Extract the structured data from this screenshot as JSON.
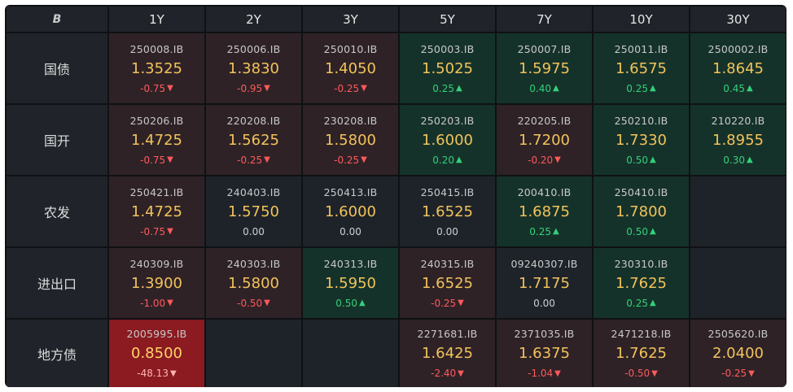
{
  "header": {
    "logo": "B",
    "tenors": [
      "1Y",
      "2Y",
      "3Y",
      "5Y",
      "7Y",
      "10Y",
      "30Y"
    ]
  },
  "colors": {
    "up": "#33d17a",
    "down": "#ff5a5a",
    "price": "#f2c35a",
    "up_bg": "#15322a",
    "down_bg": "#2e2227",
    "strong_down_bg": "#8b1a21",
    "neutral_bg": "#1e232a"
  },
  "icons": {
    "up": "triangle-up-icon",
    "down": "triangle-down-icon"
  },
  "rows": [
    {
      "label": "国债",
      "cells": [
        {
          "code": "250008.IB",
          "price": "1.3525",
          "change": "-0.75",
          "dir": "down",
          "bg": "down"
        },
        {
          "code": "250006.IB",
          "price": "1.3830",
          "change": "-0.95",
          "dir": "down",
          "bg": "down"
        },
        {
          "code": "250010.IB",
          "price": "1.4050",
          "change": "-0.25",
          "dir": "down",
          "bg": "down"
        },
        {
          "code": "250003.IB",
          "price": "1.5025",
          "change": "0.25",
          "dir": "up",
          "bg": "up"
        },
        {
          "code": "250007.IB",
          "price": "1.5975",
          "change": "0.40",
          "dir": "up",
          "bg": "up"
        },
        {
          "code": "250011.IB",
          "price": "1.6575",
          "change": "0.25",
          "dir": "up",
          "bg": "up"
        },
        {
          "code": "2500002.IB",
          "price": "1.8645",
          "change": "0.45",
          "dir": "up",
          "bg": "up"
        }
      ]
    },
    {
      "label": "国开",
      "cells": [
        {
          "code": "250206.IB",
          "price": "1.4725",
          "change": "-0.75",
          "dir": "down",
          "bg": "down"
        },
        {
          "code": "220208.IB",
          "price": "1.5625",
          "change": "-0.25",
          "dir": "down",
          "bg": "down"
        },
        {
          "code": "230208.IB",
          "price": "1.5800",
          "change": "-0.25",
          "dir": "down",
          "bg": "down"
        },
        {
          "code": "250203.IB",
          "price": "1.6000",
          "change": "0.20",
          "dir": "up",
          "bg": "up"
        },
        {
          "code": "220205.IB",
          "price": "1.7200",
          "change": "-0.20",
          "dir": "down",
          "bg": "down"
        },
        {
          "code": "250210.IB",
          "price": "1.7330",
          "change": "0.50",
          "dir": "up",
          "bg": "up"
        },
        {
          "code": "210220.IB",
          "price": "1.8955",
          "change": "0.30",
          "dir": "up",
          "bg": "up"
        }
      ]
    },
    {
      "label": "农发",
      "cells": [
        {
          "code": "250421.IB",
          "price": "1.4725",
          "change": "-0.75",
          "dir": "down",
          "bg": "down"
        },
        {
          "code": "240403.IB",
          "price": "1.5750",
          "change": "0.00",
          "dir": "flat",
          "bg": "neutral"
        },
        {
          "code": "250413.IB",
          "price": "1.6000",
          "change": "0.00",
          "dir": "flat",
          "bg": "neutral"
        },
        {
          "code": "250415.IB",
          "price": "1.6525",
          "change": "0.00",
          "dir": "flat",
          "bg": "neutral"
        },
        {
          "code": "200410.IB",
          "price": "1.6875",
          "change": "0.25",
          "dir": "up",
          "bg": "up"
        },
        {
          "code": "250410.IB",
          "price": "1.7800",
          "change": "0.50",
          "dir": "up",
          "bg": "up"
        },
        null
      ]
    },
    {
      "label": "进出口",
      "cells": [
        {
          "code": "240309.IB",
          "price": "1.3900",
          "change": "-1.00",
          "dir": "down",
          "bg": "down"
        },
        {
          "code": "240303.IB",
          "price": "1.5800",
          "change": "-0.50",
          "dir": "down",
          "bg": "down"
        },
        {
          "code": "240313.IB",
          "price": "1.5950",
          "change": "0.50",
          "dir": "up",
          "bg": "up"
        },
        {
          "code": "240315.IB",
          "price": "1.6525",
          "change": "-0.25",
          "dir": "down",
          "bg": "down"
        },
        {
          "code": "09240307.IB",
          "price": "1.7175",
          "change": "0.00",
          "dir": "flat",
          "bg": "neutral"
        },
        {
          "code": "230310.IB",
          "price": "1.7625",
          "change": "0.25",
          "dir": "up",
          "bg": "up"
        },
        null
      ]
    },
    {
      "label": "地方债",
      "cells": [
        {
          "code": "2005995.IB",
          "price": "0.8500",
          "change": "-48.13",
          "dir": "down",
          "bg": "strong-down"
        },
        null,
        null,
        {
          "code": "2271681.IB",
          "price": "1.6425",
          "change": "-2.40",
          "dir": "down",
          "bg": "down"
        },
        {
          "code": "2371035.IB",
          "price": "1.6375",
          "change": "-1.04",
          "dir": "down",
          "bg": "down"
        },
        {
          "code": "2471218.IB",
          "price": "1.7625",
          "change": "-0.50",
          "dir": "down",
          "bg": "down"
        },
        {
          "code": "2505620.IB",
          "price": "2.0400",
          "change": "-0.25",
          "dir": "down",
          "bg": "down"
        }
      ]
    }
  ]
}
